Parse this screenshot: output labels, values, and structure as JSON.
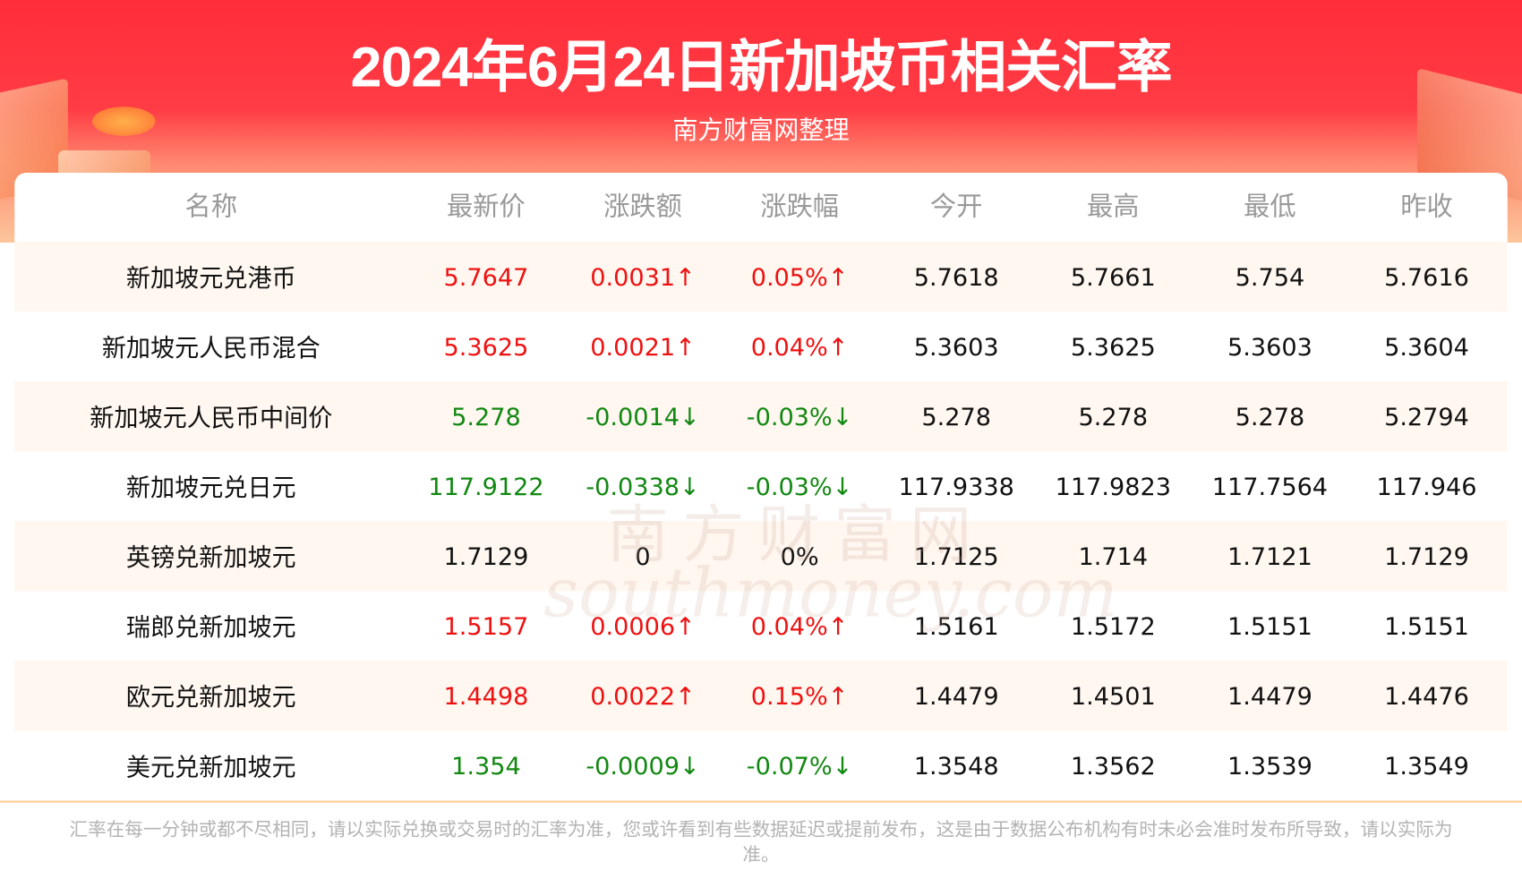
{
  "title": "2024年6月24日新加坡币相关汇率",
  "subtitle": "南方财富网整理",
  "watermark": {
    "cn": "南方财富网",
    "en": "southmoney.com"
  },
  "colors": {
    "up": "#ee1111",
    "down": "#118811",
    "banner": "#ff2d3a"
  },
  "columns": [
    "名称",
    "最新价",
    "涨跌额",
    "涨跌幅",
    "今开",
    "最高",
    "最低",
    "昨收"
  ],
  "rows": [
    {
      "trend": "up",
      "cells": [
        "新加坡元兑港币",
        "5.7647",
        "0.0031↑",
        "0.05%↑",
        "5.7618",
        "5.7661",
        "5.754",
        "5.7616"
      ]
    },
    {
      "trend": "up",
      "cells": [
        "新加坡元人民币混合",
        "5.3625",
        "0.0021↑",
        "0.04%↑",
        "5.3603",
        "5.3625",
        "5.3603",
        "5.3604"
      ]
    },
    {
      "trend": "down",
      "cells": [
        "新加坡元人民币中间价",
        "5.278",
        "-0.0014↓",
        "-0.03%↓",
        "5.278",
        "5.278",
        "5.278",
        "5.2794"
      ]
    },
    {
      "trend": "down",
      "cells": [
        "新加坡元兑日元",
        "117.9122",
        "-0.0338↓",
        "-0.03%↓",
        "117.9338",
        "117.9823",
        "117.7564",
        "117.946"
      ]
    },
    {
      "trend": "flat",
      "cells": [
        "英镑兑新加坡元",
        "1.7129",
        "0",
        "0%",
        "1.7125",
        "1.714",
        "1.7121",
        "1.7129"
      ]
    },
    {
      "trend": "up",
      "cells": [
        "瑞郎兑新加坡元",
        "1.5157",
        "0.0006↑",
        "0.04%↑",
        "1.5161",
        "1.5172",
        "1.5151",
        "1.5151"
      ]
    },
    {
      "trend": "up",
      "cells": [
        "欧元兑新加坡元",
        "1.4498",
        "0.0022↑",
        "0.15%↑",
        "1.4479",
        "1.4501",
        "1.4479",
        "1.4476"
      ]
    },
    {
      "trend": "down",
      "cells": [
        "美元兑新加坡元",
        "1.354",
        "-0.0009↓",
        "-0.07%↓",
        "1.3548",
        "1.3562",
        "1.3539",
        "1.3549"
      ]
    }
  ],
  "footer": "汇率在每一分钟或都不尽相同，请以实际兑换或交易时的汇率为准，您或许看到有些数据延迟或提前发布，这是由于数据公布机构有时未必会准时发布所导致，请以实际为准。"
}
